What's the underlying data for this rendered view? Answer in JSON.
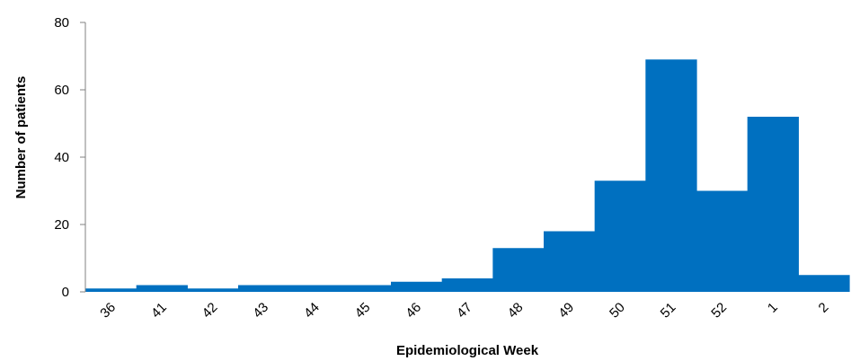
{
  "chart_data": {
    "type": "bar",
    "title": "",
    "xlabel": "Epidemiological Week",
    "ylabel": "Number of patients",
    "categories": [
      "36",
      "41",
      "42",
      "43",
      "44",
      "45",
      "46",
      "47",
      "48",
      "49",
      "50",
      "51",
      "52",
      "1",
      "2"
    ],
    "values": [
      1,
      2,
      1,
      2,
      2,
      2,
      3,
      4,
      13,
      18,
      33,
      69,
      30,
      52,
      5
    ],
    "ylim": [
      0,
      80
    ],
    "yticks": [
      0,
      20,
      40,
      60,
      80
    ],
    "grid": false,
    "legend": "none",
    "bar_color": "#0070c0"
  }
}
